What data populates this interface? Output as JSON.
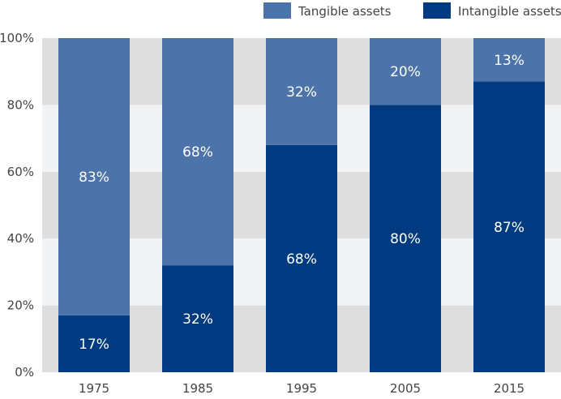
{
  "chart_data": {
    "type": "bar",
    "stacked": true,
    "percent": true,
    "categories": [
      "1975",
      "1985",
      "1995",
      "2005",
      "2015"
    ],
    "series": [
      {
        "name": "Intangible assets",
        "values": [
          17,
          32,
          68,
          80,
          87
        ],
        "labels": [
          "17%",
          "32%",
          "68%",
          "80%",
          "87%"
        ],
        "color": "#003a80"
      },
      {
        "name": "Tangible assets",
        "values": [
          83,
          68,
          32,
          20,
          13
        ],
        "labels": [
          "83%",
          "68%",
          "32%",
          "20%",
          "13%"
        ],
        "color": "#4d74aa"
      }
    ],
    "ylim": [
      0,
      100
    ],
    "yticks": [
      "0%",
      "20%",
      "40%",
      "60%",
      "80%",
      "100%"
    ],
    "title": "",
    "xlabel": "",
    "ylabel": "",
    "legend_position": "top-right",
    "band_colors": [
      "#dedede",
      "#f2f3f5"
    ]
  }
}
